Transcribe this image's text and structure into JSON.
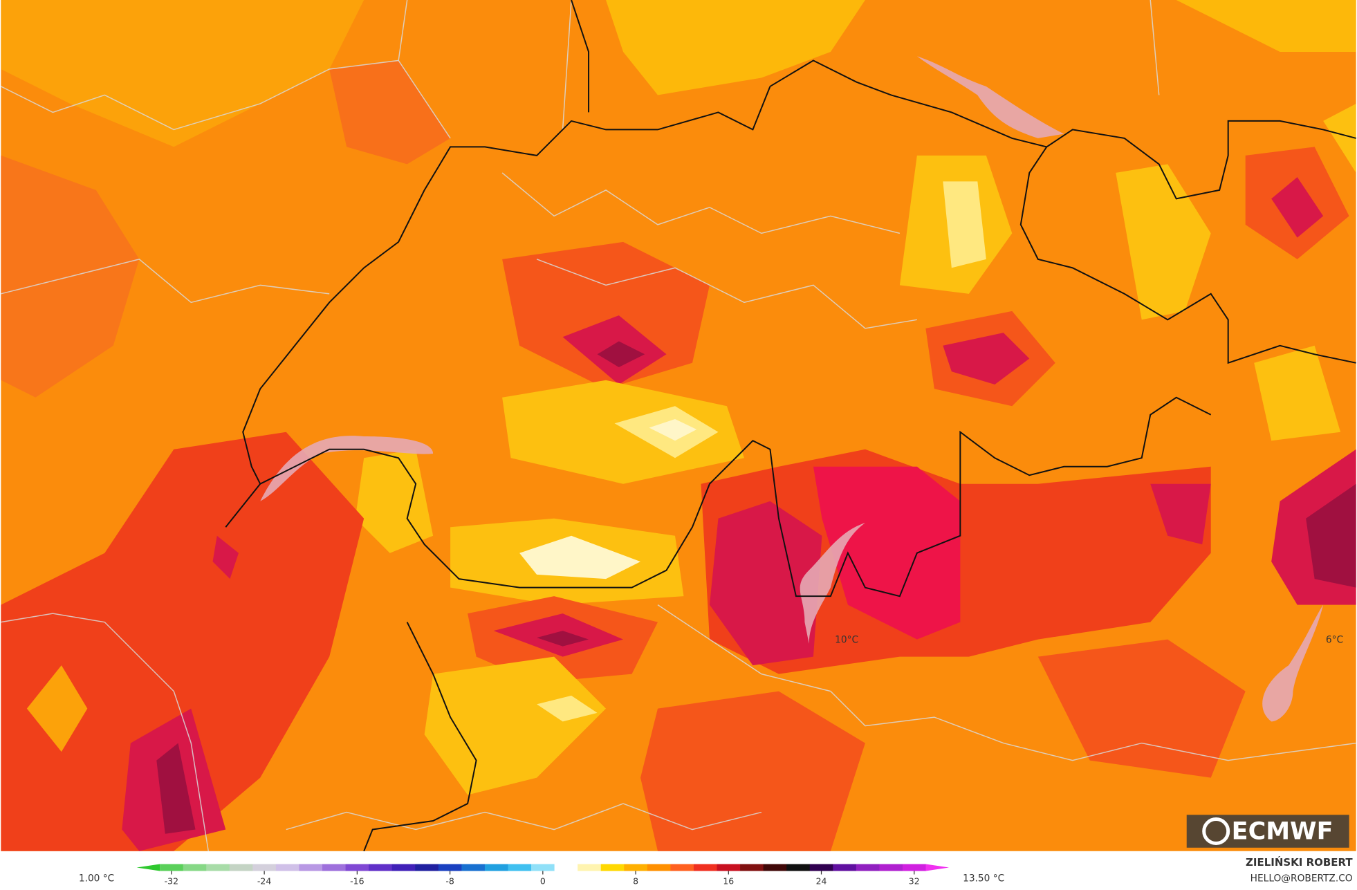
{
  "map": {
    "labels": [
      "10°C",
      "6°C"
    ]
  },
  "legend": {
    "min_label": "1.00 °C",
    "max_label": "13.50 °C",
    "colorbar": {
      "lim": [
        -35,
        35
      ],
      "ticks": [
        -32,
        -24,
        -16,
        -8,
        0,
        8,
        16,
        24,
        32
      ],
      "colors": [
        "#2ec82e",
        "#5ad05a",
        "#86d886",
        "#a8dca8",
        "#c4d4c4",
        "#d4d0dc",
        "#d0c0e8",
        "#b898e4",
        "#9e70dc",
        "#8048d4",
        "#6030c8",
        "#4020b8",
        "#2020a0",
        "#1a40c0",
        "#1870d0",
        "#20a0e0",
        "#40c0f0",
        "#90e0f8",
        "#ffffff",
        "#fff4b0",
        "#ffd800",
        "#ffb000",
        "#ff9000",
        "#ff6020",
        "#f03020",
        "#c81020",
        "#801010",
        "#400808",
        "#101010",
        "#300050",
        "#6010a0",
        "#9020c0",
        "#b020d0",
        "#d020e0",
        "#f030f0"
      ]
    }
  },
  "credit": {
    "author": "ZIELIŃSKI ROBERT",
    "contact": "HELLO@ROBERTZ.CO"
  },
  "logo": "ECMWF"
}
